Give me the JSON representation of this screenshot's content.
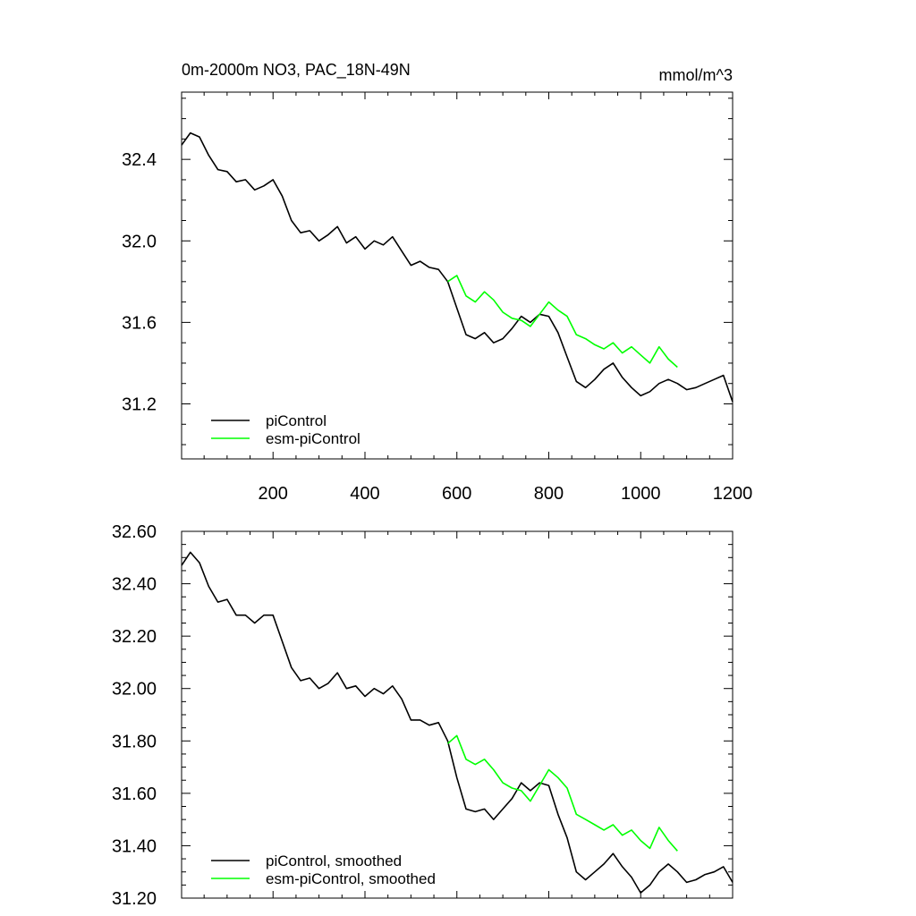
{
  "chart_data": [
    {
      "type": "line",
      "title": "0m-2000m NO3, PAC_18N-49N",
      "units": "mmol/m^3",
      "xlim": [
        1,
        1200
      ],
      "ylim": [
        30.93,
        32.73
      ],
      "xticks": [
        200,
        400,
        600,
        800,
        1000,
        1200
      ],
      "yticks": [
        31.2,
        31.6,
        32.0,
        32.4
      ],
      "ytick_labels": [
        "31.2",
        "31.6",
        "32.0",
        "32.4"
      ],
      "legend_position": "bottom-left",
      "series": [
        {
          "name": "piControl",
          "color": "#000000",
          "x": [
            1,
            20,
            40,
            60,
            80,
            100,
            120,
            140,
            160,
            180,
            200,
            220,
            240,
            260,
            280,
            300,
            320,
            340,
            360,
            380,
            400,
            420,
            440,
            460,
            480,
            500,
            520,
            540,
            560,
            580,
            600,
            620,
            640,
            660,
            680,
            700,
            720,
            740,
            760,
            780,
            800,
            820,
            840,
            860,
            880,
            900,
            920,
            940,
            960,
            980,
            1000,
            1020,
            1040,
            1060,
            1080,
            1100,
            1120,
            1140,
            1160,
            1180,
            1200
          ],
          "y": [
            32.47,
            32.53,
            32.51,
            32.42,
            32.35,
            32.34,
            32.29,
            32.3,
            32.25,
            32.27,
            32.3,
            32.22,
            32.1,
            32.04,
            32.05,
            32.0,
            32.03,
            32.07,
            31.99,
            32.02,
            31.96,
            32.0,
            31.98,
            32.02,
            31.95,
            31.88,
            31.9,
            31.87,
            31.86,
            31.8,
            31.67,
            31.54,
            31.52,
            31.55,
            31.5,
            31.52,
            31.57,
            31.63,
            31.6,
            31.64,
            31.63,
            31.55,
            31.43,
            31.31,
            31.28,
            31.32,
            31.37,
            31.4,
            31.33,
            31.28,
            31.24,
            31.26,
            31.3,
            31.32,
            31.3,
            31.27,
            31.28,
            31.3,
            31.32,
            31.34,
            31.21
          ]
        },
        {
          "name": "esm-piControl",
          "color": "#00ff00",
          "x": [
            580,
            600,
            620,
            640,
            660,
            680,
            700,
            720,
            740,
            760,
            780,
            800,
            820,
            840,
            860,
            880,
            900,
            920,
            940,
            960,
            980,
            1000,
            1020,
            1040,
            1060,
            1080
          ],
          "y": [
            31.8,
            31.83,
            31.73,
            31.7,
            31.75,
            31.71,
            31.65,
            31.62,
            31.61,
            31.58,
            31.64,
            31.7,
            31.66,
            31.63,
            31.54,
            31.52,
            31.49,
            31.47,
            31.5,
            31.45,
            31.48,
            31.44,
            31.4,
            31.48,
            31.42,
            31.38
          ]
        }
      ]
    },
    {
      "type": "line",
      "xlim": [
        1,
        1200
      ],
      "ylim": [
        31.2,
        32.6
      ],
      "xticks": [
        200,
        400,
        600,
        800,
        1000,
        1200
      ],
      "yticks": [
        31.2,
        31.4,
        31.6,
        31.8,
        32.0,
        32.2,
        32.4,
        32.6
      ],
      "ytick_labels": [
        "31.20",
        "31.40",
        "31.60",
        "31.80",
        "32.00",
        "32.20",
        "32.40",
        "32.60"
      ],
      "legend_position": "bottom-left",
      "series": [
        {
          "name": "piControl, smoothed",
          "color": "#000000",
          "x": [
            1,
            20,
            40,
            60,
            80,
            100,
            120,
            140,
            160,
            180,
            200,
            220,
            240,
            260,
            280,
            300,
            320,
            340,
            360,
            380,
            400,
            420,
            440,
            460,
            480,
            500,
            520,
            540,
            560,
            580,
            600,
            620,
            640,
            660,
            680,
            700,
            720,
            740,
            760,
            780,
            800,
            820,
            840,
            860,
            880,
            900,
            920,
            940,
            960,
            980,
            1000,
            1020,
            1040,
            1060,
            1080,
            1100,
            1120,
            1140,
            1160,
            1180,
            1200
          ],
          "y": [
            32.47,
            32.52,
            32.48,
            32.39,
            32.33,
            32.34,
            32.28,
            32.28,
            32.25,
            32.28,
            32.28,
            32.18,
            32.08,
            32.03,
            32.04,
            32.0,
            32.02,
            32.06,
            32.0,
            32.01,
            31.97,
            32.0,
            31.98,
            32.01,
            31.96,
            31.88,
            31.88,
            31.86,
            31.87,
            31.8,
            31.66,
            31.54,
            31.53,
            31.54,
            31.5,
            31.54,
            31.58,
            31.64,
            31.61,
            31.64,
            31.63,
            31.52,
            31.43,
            31.3,
            31.27,
            31.3,
            31.33,
            31.37,
            31.32,
            31.28,
            31.22,
            31.25,
            31.3,
            31.33,
            31.3,
            31.26,
            31.27,
            31.29,
            31.3,
            31.32,
            31.26
          ]
        },
        {
          "name": "esm-piControl, smoothed",
          "color": "#00ff00",
          "x": [
            580,
            600,
            620,
            640,
            660,
            680,
            700,
            720,
            740,
            760,
            780,
            800,
            820,
            840,
            860,
            880,
            900,
            920,
            940,
            960,
            980,
            1000,
            1020,
            1040,
            1060,
            1080
          ],
          "y": [
            31.79,
            31.82,
            31.73,
            31.71,
            31.73,
            31.69,
            31.64,
            31.62,
            31.61,
            31.57,
            31.63,
            31.69,
            31.66,
            31.62,
            31.52,
            31.5,
            31.48,
            31.46,
            31.48,
            31.44,
            31.46,
            31.42,
            31.39,
            31.47,
            31.42,
            31.38
          ]
        }
      ]
    }
  ]
}
